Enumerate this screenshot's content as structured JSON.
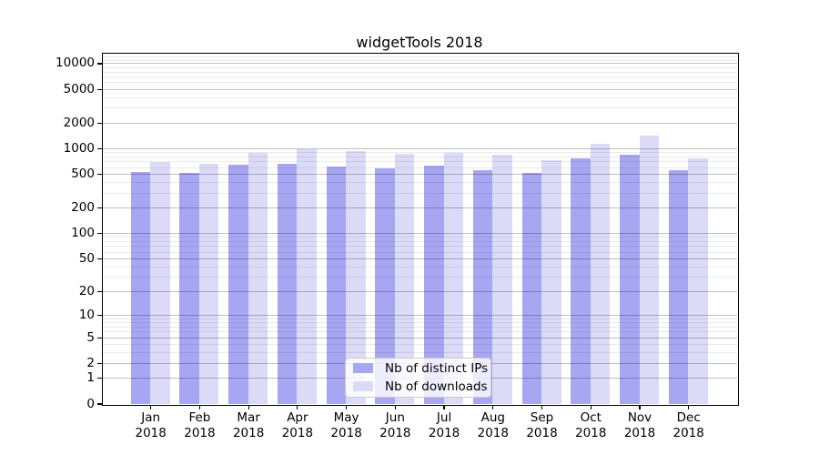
{
  "chart_data": {
    "type": "bar",
    "title": "widgetTools 2018",
    "categories": [
      "Jan 2018",
      "Feb 2018",
      "Mar 2018",
      "Apr 2018",
      "May 2018",
      "Jun 2018",
      "Jul 2018",
      "Aug 2018",
      "Sep 2018",
      "Oct 2018",
      "Nov 2018",
      "Dec 2018"
    ],
    "months": [
      "Jan",
      "Feb",
      "Mar",
      "Apr",
      "May",
      "Jun",
      "Jul",
      "Aug",
      "Sep",
      "Oct",
      "Nov",
      "Dec"
    ],
    "year": "2018",
    "series": [
      {
        "name": "Nb of distinct IPs",
        "color": "#a6a6f2",
        "values": [
          530,
          510,
          635,
          665,
          610,
          585,
          620,
          555,
          515,
          765,
          850,
          550
        ]
      },
      {
        "name": "Nb of downloads",
        "color": "#dbdbf8",
        "values": [
          695,
          665,
          880,
          980,
          930,
          865,
          890,
          850,
          720,
          1125,
          1400,
          765
        ]
      }
    ],
    "xlabel": "",
    "ylabel": "",
    "yscale": "log1p",
    "ylim": [
      0,
      13100
    ],
    "yticks": [
      0,
      1,
      2,
      5,
      10,
      20,
      50,
      100,
      200,
      500,
      1000,
      2000,
      5000,
      10000
    ],
    "minor_gridlines": [
      3,
      4,
      6,
      7,
      8,
      9,
      30,
      40,
      60,
      70,
      80,
      90,
      300,
      400,
      600,
      700,
      800,
      900,
      3000,
      4000,
      6000,
      7000,
      8000,
      9000,
      11000,
      12000
    ],
    "grid": "horizontal, major and minor, drawn over bars",
    "legend": {
      "position": "lower center, inside plot",
      "items": [
        "Nb of distinct IPs",
        "Nb of downloads"
      ]
    }
  },
  "colors": {
    "distinct_ips": "#a6a6f2",
    "downloads": "#dbdbf8",
    "axis": "#000000",
    "background": "#ffffff"
  }
}
